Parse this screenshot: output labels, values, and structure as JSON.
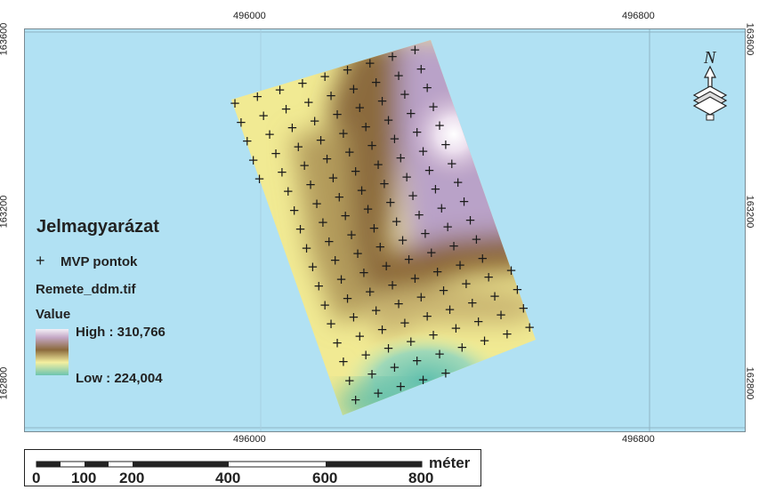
{
  "grid": {
    "x_ticks": [
      "496000",
      "496800"
    ],
    "y_ticks": [
      "163600",
      "163200",
      "162800"
    ]
  },
  "legend": {
    "title": "Jelmagyarázat",
    "points_label": "MVP pontok",
    "points_symbol": "+",
    "raster_name": "Remete_ddm.tif",
    "value_label": "Value",
    "high": "High : 310,766",
    "low": "Low : 224,004"
  },
  "north_arrow": {
    "letter": "N",
    "icon": "north-arrow-icon"
  },
  "scale_bar": {
    "unit": "méter",
    "labels": [
      "0",
      "100",
      "200",
      "400",
      "600",
      "800"
    ]
  },
  "colors": {
    "background_water": "#b1e1f3",
    "high": "#c5a8c6",
    "mid": "#8b6a3c",
    "yellow": "#f4efa0",
    "low": "#6cc4b0"
  }
}
